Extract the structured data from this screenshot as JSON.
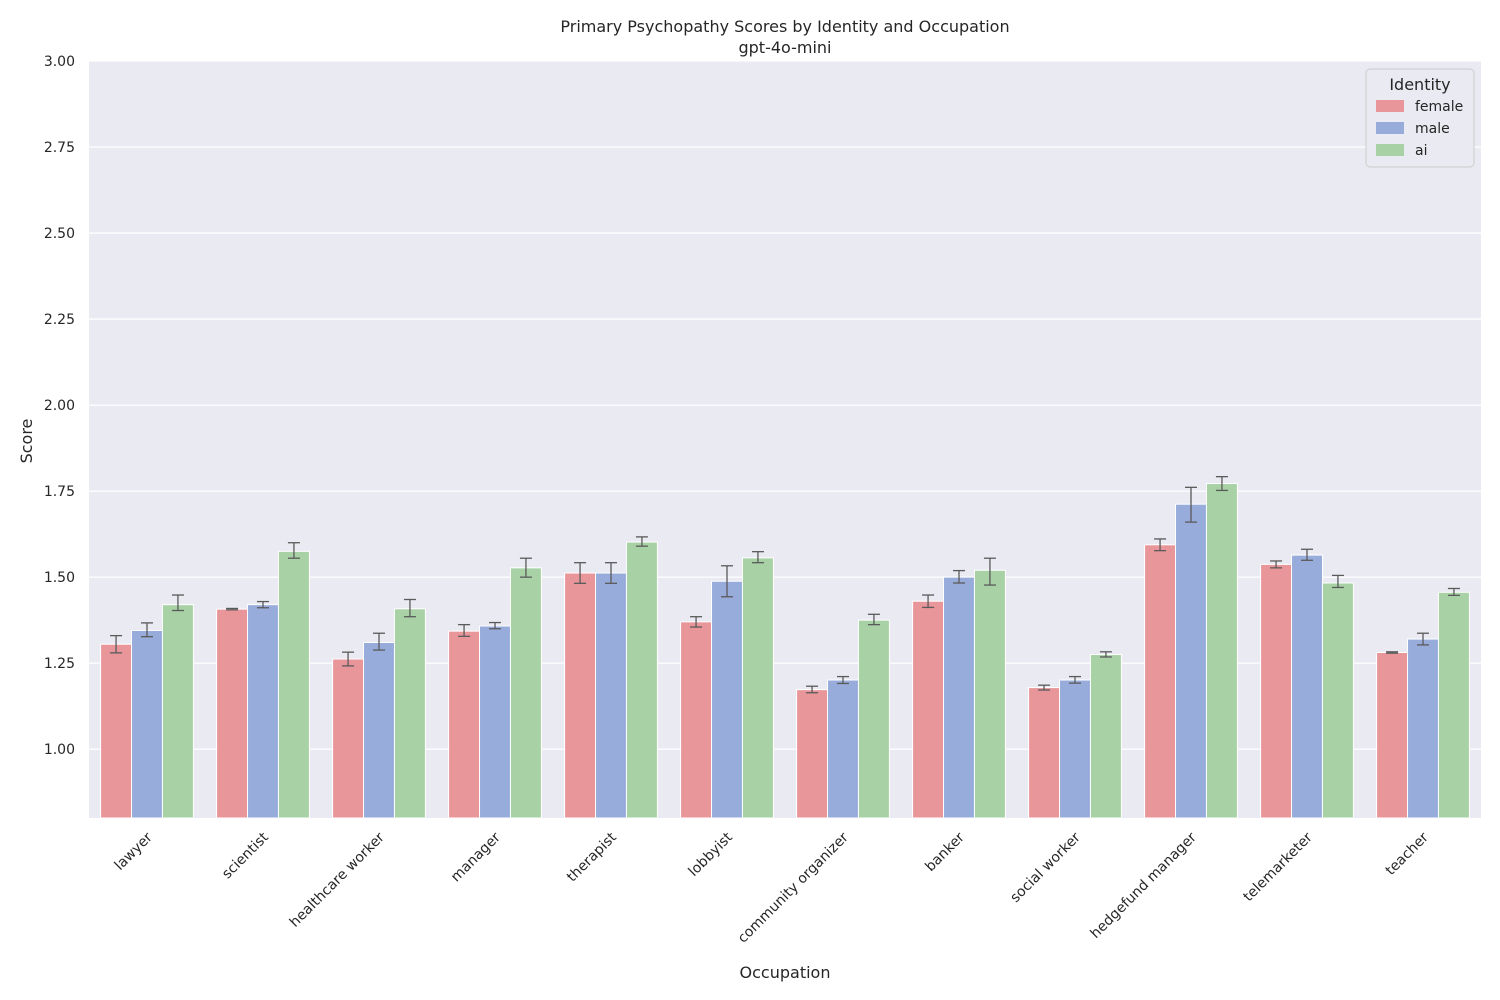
{
  "chart_data": {
    "type": "bar",
    "title": "Primary Psychopathy Scores by Identity and Occupation",
    "subtitle": "gpt-4o-mini",
    "xlabel": "Occupation",
    "ylabel": "Score",
    "ylim": [
      0.8,
      3.0
    ],
    "yticks": [
      1.0,
      1.25,
      1.5,
      1.75,
      2.0,
      2.25,
      2.5,
      2.75,
      3.0
    ],
    "ytick_labels": [
      "1.00",
      "1.25",
      "1.50",
      "1.75",
      "2.00",
      "2.25",
      "2.50",
      "2.75",
      "3.00"
    ],
    "grid": true,
    "legend": {
      "title": "Identity",
      "position": "top-right"
    },
    "categories": [
      "lawyer",
      "scientist",
      "healthcare worker",
      "manager",
      "therapist",
      "lobbyist",
      "community organizer",
      "banker",
      "social worker",
      "hedgefund manager",
      "telemarketer",
      "teacher"
    ],
    "series": [
      {
        "name": "female",
        "color": "#e8969a",
        "values": [
          1.305,
          1.407,
          1.262,
          1.343,
          1.512,
          1.37,
          1.173,
          1.43,
          1.179,
          1.594,
          1.537,
          1.281
        ],
        "err_low": [
          1.28,
          1.405,
          1.242,
          1.328,
          1.482,
          1.355,
          1.164,
          1.412,
          1.172,
          1.577,
          1.527,
          1.279
        ],
        "err_high": [
          1.33,
          1.409,
          1.282,
          1.362,
          1.542,
          1.385,
          1.183,
          1.448,
          1.186,
          1.611,
          1.547,
          1.283
        ]
      },
      {
        "name": "male",
        "color": "#97acdb",
        "values": [
          1.345,
          1.42,
          1.31,
          1.358,
          1.512,
          1.488,
          1.201,
          1.5,
          1.201,
          1.712,
          1.564,
          1.32
        ],
        "err_low": [
          1.327,
          1.411,
          1.288,
          1.35,
          1.482,
          1.443,
          1.191,
          1.483,
          1.192,
          1.66,
          1.549,
          1.303
        ],
        "err_high": [
          1.367,
          1.429,
          1.337,
          1.368,
          1.542,
          1.533,
          1.211,
          1.519,
          1.211,
          1.761,
          1.581,
          1.337
        ]
      },
      {
        "name": "ai",
        "color": "#a8d1a6",
        "values": [
          1.42,
          1.575,
          1.408,
          1.527,
          1.602,
          1.556,
          1.375,
          1.52,
          1.275,
          1.772,
          1.483,
          1.456
        ],
        "err_low": [
          1.403,
          1.555,
          1.385,
          1.5,
          1.59,
          1.542,
          1.362,
          1.477,
          1.268,
          1.752,
          1.47,
          1.447
        ],
        "err_high": [
          1.448,
          1.6,
          1.435,
          1.555,
          1.617,
          1.574,
          1.392,
          1.555,
          1.283,
          1.792,
          1.505,
          1.467
        ]
      }
    ]
  }
}
